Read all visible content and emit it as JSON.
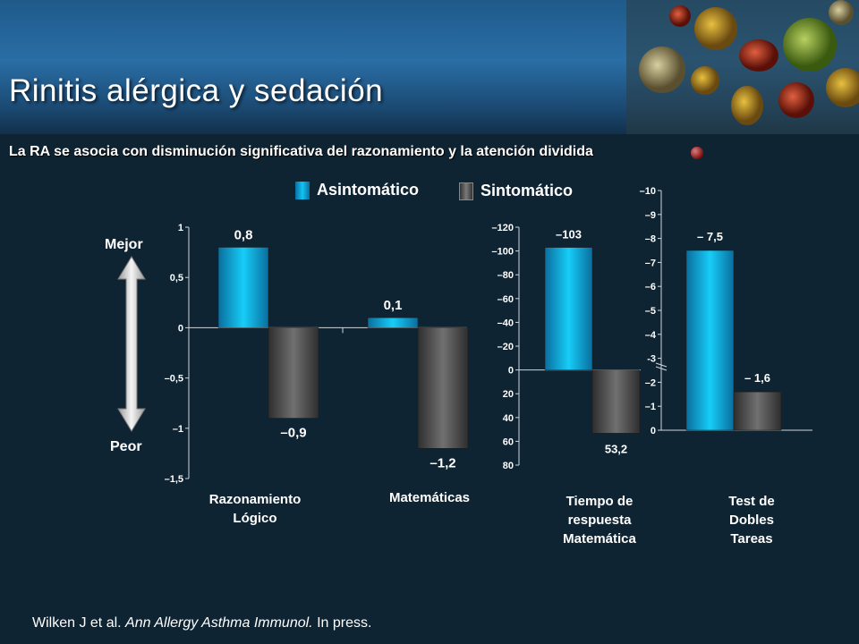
{
  "title": "Rinitis  alérgica  y sedación",
  "subtitle": "La RA se asocia con disminución significativa del razonamiento y la atención dividida",
  "legend": {
    "asymptomatic": "Asintomático",
    "symptomatic": "Sintomático",
    "asymptomatic_color": "#12c4f4",
    "symptomatic_color": "#5a5a5a"
  },
  "arrow": {
    "top_label": "Mejor",
    "bottom_label": "Peor"
  },
  "footer": {
    "authors": "Wilken J et al.",
    "journal": "Ann Allergy Asthma Immunol.",
    "status": "In press."
  },
  "chart_data": [
    {
      "type": "bar",
      "categories": [
        "Razonamiento\nLógico",
        "Matemáticas"
      ],
      "series": [
        {
          "name": "Asintomático",
          "values": [
            0.8,
            0.1
          ],
          "labels": [
            "0,8",
            "0,1"
          ]
        },
        {
          "name": "Sintomático",
          "values": [
            -0.9,
            -1.2
          ],
          "labels": [
            "–0,9",
            "–1,2"
          ]
        }
      ],
      "ylim": [
        -1.5,
        1
      ],
      "yticks": [
        1,
        0.5,
        0,
        -0.5,
        -1,
        -1.5
      ],
      "ytick_labels": [
        "1",
        "0,5",
        "0",
        "–0,5",
        "–1",
        "–1,5"
      ]
    },
    {
      "type": "bar",
      "categories": [
        "Tiempo de\nrespuesta\nMatemática"
      ],
      "y_inverted": true,
      "series": [
        {
          "name": "Asintomático",
          "values": [
            -103
          ],
          "labels": [
            "–103"
          ]
        },
        {
          "name": "Sintomático",
          "values": [
            53.2
          ],
          "labels": [
            "53,2"
          ]
        }
      ],
      "ylim": [
        -120,
        80
      ],
      "yticks": [
        -120,
        -100,
        -80,
        -60,
        -40,
        -20,
        0,
        20,
        40,
        60,
        80
      ],
      "ytick_labels": [
        "–120",
        "–100",
        "–80",
        "–60",
        "–40",
        "–20",
        "0",
        "20",
        "40",
        "60",
        "80"
      ]
    },
    {
      "type": "bar",
      "categories": [
        "Test de\nDobles\nTareas"
      ],
      "y_inverted": true,
      "axis_break": true,
      "series": [
        {
          "name": "Asintomático",
          "values": [
            -7.5
          ],
          "labels": [
            "– 7,5"
          ]
        },
        {
          "name": "Sintomático",
          "values": [
            -1.6
          ],
          "labels": [
            "– 1,6"
          ]
        }
      ],
      "ylim": [
        0,
        -10
      ],
      "yticks": [
        -10,
        -9,
        -8,
        -7,
        -6,
        -5,
        -4,
        -3,
        -2,
        -1,
        0
      ],
      "ytick_labels": [
        "–10",
        "–9",
        "–8",
        "–7",
        "–6",
        "–5",
        "–4",
        "-3",
        "–2",
        "–1",
        "0"
      ]
    }
  ]
}
